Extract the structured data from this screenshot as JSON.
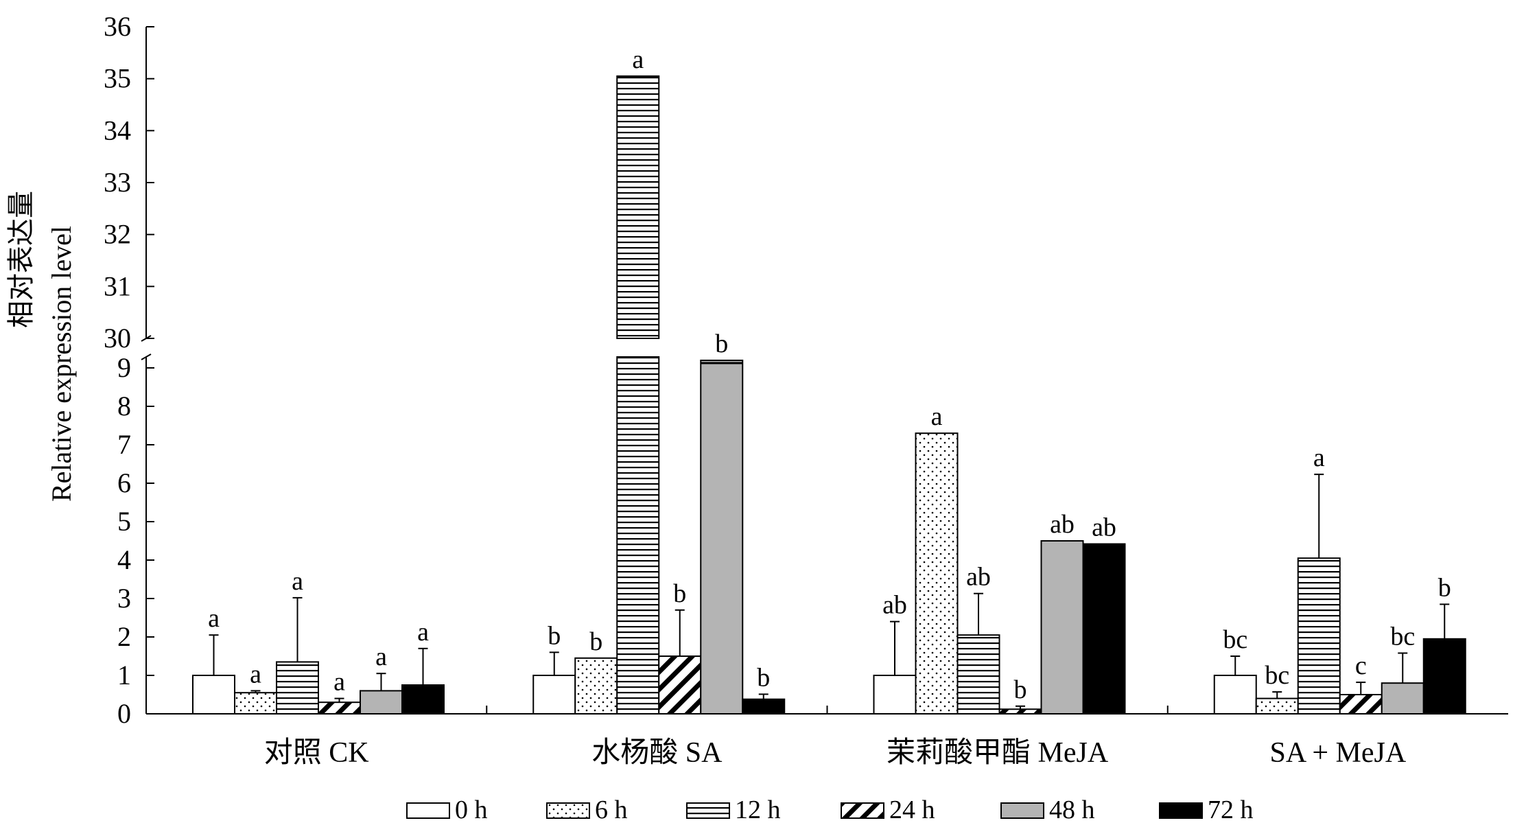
{
  "chart_data": {
    "type": "bar",
    "ylabel_cn": "相对表达量",
    "ylabel_en": "Relative expression level",
    "categories": [
      "对照  CK",
      "水杨酸  SA",
      "茉莉酸甲酯  MeJA",
      "SA + MeJA"
    ],
    "y_axis_break": {
      "lower_range": [
        0,
        9
      ],
      "upper_range": [
        30,
        36
      ]
    },
    "lower_ticks": [
      "0",
      "1",
      "2",
      "3",
      "4",
      "5",
      "6",
      "7",
      "8",
      "9"
    ],
    "upper_ticks": [
      "30",
      "31",
      "32",
      "33",
      "34",
      "35",
      "36"
    ],
    "legend_position": "bottom",
    "grid": false,
    "series": [
      {
        "name": "0 h",
        "pattern": "white",
        "values": [
          1.0,
          1.0,
          1.0,
          1.0
        ],
        "errors": [
          1.05,
          0.6,
          1.4,
          0.5
        ],
        "labels": [
          "a",
          "b",
          "ab",
          "bc"
        ]
      },
      {
        "name": "6 h",
        "pattern": "dots",
        "values": [
          0.55,
          1.45,
          7.3,
          0.4
        ],
        "errors": [
          0.05,
          0.0,
          0.0,
          0.17
        ],
        "labels": [
          "a",
          "b",
          "a",
          "bc"
        ]
      },
      {
        "name": "12 h",
        "pattern": "hlines",
        "values": [
          1.35,
          35.05,
          2.05,
          4.05
        ],
        "errors": [
          1.67,
          0.0,
          1.08,
          2.18
        ],
        "labels": [
          "a",
          "a",
          "ab",
          "a"
        ]
      },
      {
        "name": "24 h",
        "pattern": "diag",
        "values": [
          0.3,
          1.5,
          0.12,
          0.5
        ],
        "errors": [
          0.1,
          1.2,
          0.08,
          0.32
        ],
        "labels": [
          "a",
          "b",
          "b",
          "c"
        ]
      },
      {
        "name": "48 h",
        "pattern": "gray",
        "values": [
          0.6,
          9.25,
          4.5,
          0.8
        ],
        "errors": [
          0.45,
          0.0,
          0.0,
          0.78
        ],
        "labels": [
          "a",
          "b",
          "ab",
          "bc"
        ]
      },
      {
        "name": "72 h",
        "pattern": "black",
        "values": [
          0.75,
          0.38,
          4.42,
          1.95
        ],
        "errors": [
          0.95,
          0.13,
          0.0,
          0.9
        ],
        "labels": [
          "a",
          "b",
          "ab",
          "b"
        ]
      }
    ],
    "colors": {
      "gray": "#b4b4b4",
      "black": "#000000",
      "white": "#ffffff"
    }
  }
}
